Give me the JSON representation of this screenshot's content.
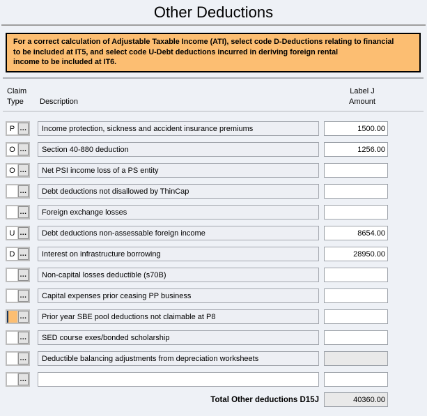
{
  "title": "Other Deductions",
  "info_banner": {
    "lines": [
      "For a correct calculation of Adjustable Taxable Income (ATI), select code D-Deductions relating to financial",
      "to be included at IT5, and select code U-Debt deductions incurred in deriving foreign rental",
      "income to be included at IT6."
    ],
    "background_color": "#fcbe72",
    "border_color": "#000000"
  },
  "columns": {
    "claim_line1": "Claim",
    "claim_line2": "Type",
    "description": "Description",
    "amount_line1": "Label J",
    "amount_line2": "Amount"
  },
  "claim_picker_button_label": "...",
  "rows": [
    {
      "claim_code": "P",
      "description": "Income protection, sickness and accident insurance premiums",
      "amount": "1500.00"
    },
    {
      "claim_code": "O",
      "description": "Section 40-880 deduction",
      "amount": "1256.00"
    },
    {
      "claim_code": "O",
      "description": "Net PSI income loss of a PS entity",
      "amount": ""
    },
    {
      "claim_code": "",
      "description": "Debt deductions not disallowed by ThinCap",
      "amount": ""
    },
    {
      "claim_code": "",
      "description": "Foreign exchange losses",
      "amount": ""
    },
    {
      "claim_code": "U",
      "description": "Debt deductions non-assessable foreign income",
      "amount": "8654.00"
    },
    {
      "claim_code": "D",
      "description": "Interest on infrastructure borrowing",
      "amount": "28950.00"
    },
    {
      "claim_code": "",
      "description": "Non-capital losses deductible (s70B)",
      "amount": ""
    },
    {
      "claim_code": "",
      "description": "Capital expenses prior ceasing PP business",
      "amount": ""
    },
    {
      "claim_code": "",
      "description": "Prior year SBE pool deductions not claimable at P8",
      "amount": "",
      "claim_focused": true
    },
    {
      "claim_code": "",
      "description": "SED course exes/bonded scholarship",
      "amount": ""
    },
    {
      "claim_code": "",
      "description": "Deductible balancing adjustments from depreciation worksheets",
      "amount": "",
      "amount_readonly": true
    },
    {
      "claim_code": "",
      "description": "",
      "amount": "",
      "description_editable": true
    }
  ],
  "total": {
    "label": "Total Other deductions D15J",
    "value": "40360.00"
  },
  "colors": {
    "page_background": "#eef1f6",
    "banner_orange": "#fcbe72",
    "focused_field_orange": "#fcbe72",
    "readonly_field_gray": "#e9e9e9",
    "field_border_gray": "#9da2a9"
  }
}
